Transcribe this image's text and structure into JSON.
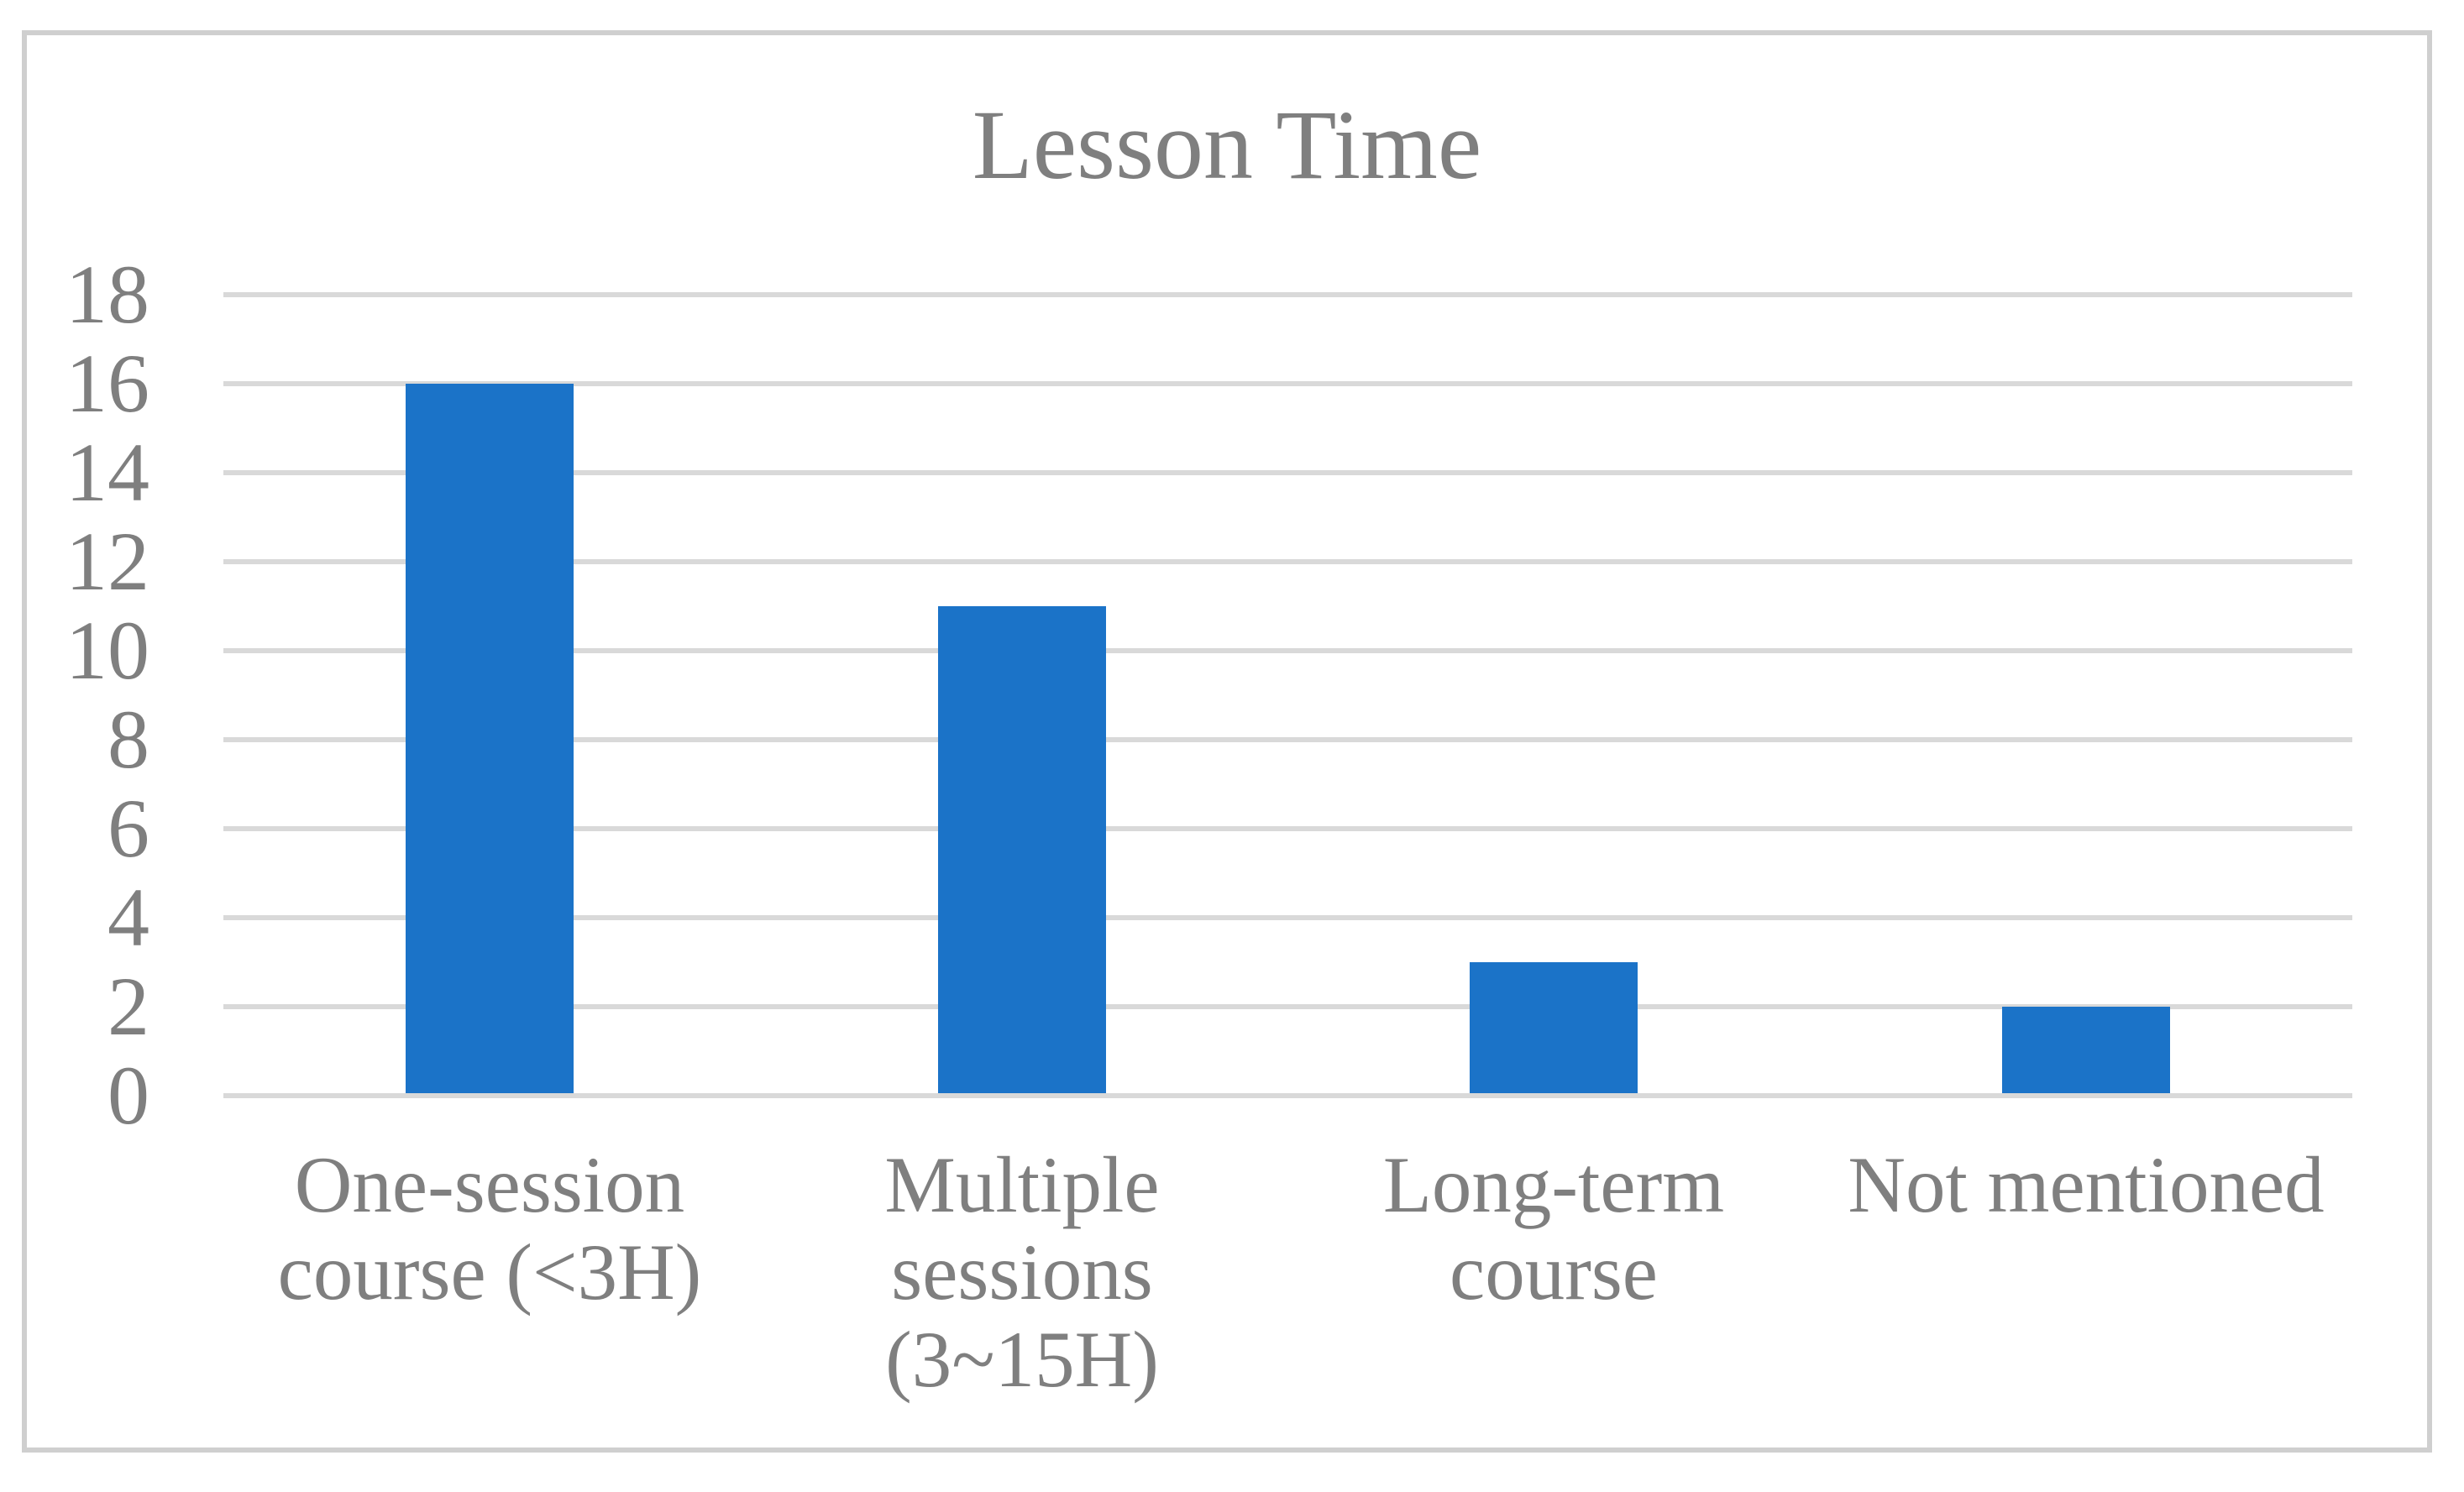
{
  "chart_data": {
    "type": "bar",
    "title": "Lesson Time",
    "categories": [
      "One-session course (<3H)",
      "Multiple sessions (3~15H)",
      "Long-term course",
      "Not mentioned"
    ],
    "category_lines": [
      [
        "One-session",
        "course (<3H)"
      ],
      [
        "Multiple",
        "sessions",
        "(3~15H)"
      ],
      [
        "Long-term",
        "course"
      ],
      [
        "Not mentioned"
      ]
    ],
    "values": [
      16,
      11,
      3,
      2
    ],
    "yticks": [
      0,
      2,
      4,
      6,
      8,
      10,
      12,
      14,
      16,
      18
    ],
    "ylim": [
      0,
      18
    ],
    "xlabel": "",
    "ylabel": "",
    "grid": true,
    "legend_position": "none",
    "colors": {
      "bar": "#1B73C8",
      "text": "#7F7F7F",
      "gridline": "#D9D9D9",
      "frame": "#CFCFCF",
      "background": "#FFFFFF"
    }
  }
}
